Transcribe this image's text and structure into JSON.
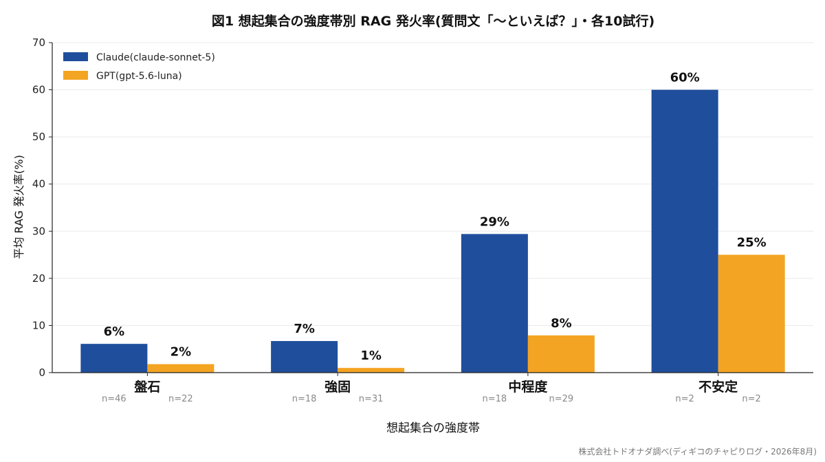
{
  "chart_data": {
    "type": "bar",
    "title": "図1 想起集合の強度帯別 RAG 発火率(質問文「〜といえば？」・各10試行)",
    "xlabel": "想起集合の強度帯",
    "ylabel": "平均 RAG 発火率(%)",
    "ylim": [
      0,
      70
    ],
    "yticks": [
      0,
      10,
      20,
      30,
      40,
      50,
      60,
      70
    ],
    "grid": true,
    "legend_position": "top-left",
    "categories": [
      "盤石",
      "強固",
      "中程度",
      "不安定"
    ],
    "series": [
      {
        "name": "Claude(claude-sonnet-5)",
        "color": "#1f4e9c",
        "values": [
          6.1,
          6.7,
          29.4,
          60
        ],
        "labels": [
          "6%",
          "7%",
          "29%",
          "60%"
        ],
        "n_labels": [
          "n=46",
          "n=18",
          "n=18",
          "n=2"
        ]
      },
      {
        "name": "GPT(gpt-5.6-luna)",
        "color": "#f4a423",
        "values": [
          1.8,
          1.0,
          7.9,
          25
        ],
        "labels": [
          "2%",
          "1%",
          "8%",
          "25%"
        ],
        "n_labels": [
          "n=22",
          "n=31",
          "n=29",
          "n=2"
        ]
      }
    ]
  },
  "footer": {
    "source": "株式会社トドオナダ調べ(ディギコのチャピりログ・2026年8月)"
  }
}
